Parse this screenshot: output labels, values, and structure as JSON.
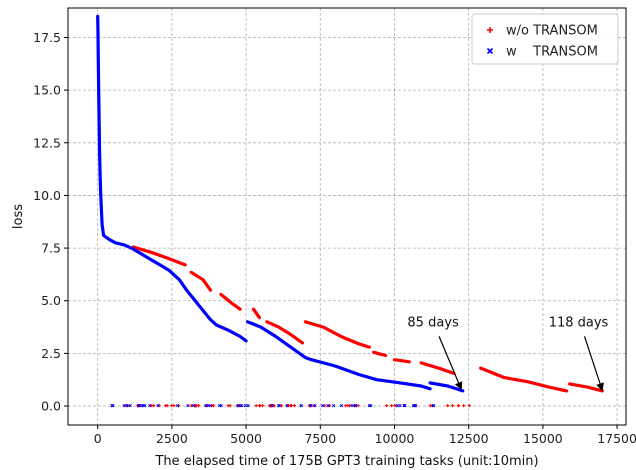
{
  "chart_data": {
    "type": "scatter",
    "xlabel": "The elapsed time of 175B GPT3 training tasks (unit:10min)",
    "ylabel": "loss",
    "xlim": [
      -1000,
      17800
    ],
    "ylim": [
      -0.9,
      18.9
    ],
    "xticks": [
      0,
      2500,
      5000,
      7500,
      10000,
      12500,
      15000,
      17500
    ],
    "yticks": [
      0.0,
      2.5,
      5.0,
      7.5,
      10.0,
      12.5,
      15.0,
      17.5
    ],
    "xtick_labels": [
      "0",
      "2500",
      "5000",
      "7500",
      "10000",
      "12500",
      "15000",
      "17500"
    ],
    "ytick_labels": [
      "0.0",
      "2.5",
      "5.0",
      "7.5",
      "10.0",
      "12.5",
      "15.0",
      "17.5"
    ],
    "grid": true,
    "legend_position": "top-right",
    "series": [
      {
        "name": "w/o TRANSOM",
        "marker": "plus",
        "color": "#ff0000",
        "segments": [
          [
            [
              1200,
              7.55
            ],
            [
              1800,
              7.3
            ],
            [
              2400,
              7.0
            ],
            [
              2950,
              6.7
            ]
          ],
          [
            [
              3150,
              6.35
            ],
            [
              3550,
              6.0
            ],
            [
              3800,
              5.5
            ]
          ],
          [
            [
              4150,
              5.3
            ],
            [
              4500,
              4.9
            ],
            [
              4800,
              4.6
            ]
          ],
          [
            [
              5250,
              4.6
            ],
            [
              5450,
              4.2
            ]
          ],
          [
            [
              5700,
              4.0
            ],
            [
              6100,
              3.75
            ],
            [
              6500,
              3.4
            ],
            [
              6900,
              3.0
            ]
          ],
          [
            [
              7000,
              4.0
            ],
            [
              7600,
              3.75
            ],
            [
              8200,
              3.3
            ],
            [
              8800,
              2.95
            ],
            [
              9150,
              2.8
            ]
          ],
          [
            [
              9300,
              2.55
            ],
            [
              9700,
              2.4
            ]
          ],
          [
            [
              10000,
              2.2
            ],
            [
              10500,
              2.1
            ]
          ],
          [
            [
              10900,
              2.05
            ],
            [
              11600,
              1.75
            ],
            [
              12000,
              1.55
            ]
          ],
          [
            [
              12900,
              1.8
            ],
            [
              13700,
              1.35
            ],
            [
              14500,
              1.15
            ],
            [
              15200,
              0.9
            ],
            [
              15800,
              0.72
            ]
          ],
          [
            [
              15900,
              1.05
            ],
            [
              16500,
              0.9
            ],
            [
              17000,
              0.72
            ]
          ]
        ],
        "near_zero_range": [
          400,
          12700
        ]
      },
      {
        "name": "w    TRANSOM",
        "marker": "x",
        "color": "#0000ff",
        "segments": [
          [
            [
              0,
              18.5
            ],
            [
              10,
              17.7
            ],
            [
              20,
              16.4
            ],
            [
              35,
              14.9
            ],
            [
              50,
              13.3
            ],
            [
              65,
              12.0
            ],
            [
              80,
              11.0
            ],
            [
              100,
              10.2
            ],
            [
              150,
              8.6
            ],
            [
              200,
              8.1
            ],
            [
              300,
              8.0
            ],
            [
              400,
              7.9
            ],
            [
              600,
              7.75
            ],
            [
              900,
              7.65
            ],
            [
              1200,
              7.45
            ],
            [
              1500,
              7.2
            ],
            [
              1800,
              6.95
            ],
            [
              2100,
              6.7
            ],
            [
              2400,
              6.45
            ],
            [
              2750,
              6.0
            ],
            [
              3000,
              5.5
            ],
            [
              3400,
              4.8
            ],
            [
              3800,
              4.1
            ],
            [
              4000,
              3.85
            ],
            [
              4400,
              3.6
            ],
            [
              4800,
              3.3
            ],
            [
              5000,
              3.1
            ]
          ],
          [
            [
              5050,
              4.0
            ],
            [
              5500,
              3.75
            ],
            [
              6000,
              3.3
            ],
            [
              6500,
              2.8
            ],
            [
              7000,
              2.3
            ],
            [
              7200,
              2.2
            ],
            [
              8000,
              1.9
            ],
            [
              8800,
              1.5
            ],
            [
              9400,
              1.25
            ],
            [
              10200,
              1.1
            ],
            [
              10900,
              0.95
            ],
            [
              11200,
              0.82
            ]
          ],
          [
            [
              11200,
              1.1
            ],
            [
              11800,
              0.95
            ],
            [
              12300,
              0.72
            ]
          ]
        ],
        "near_zero_range": [
          400,
          11600
        ]
      }
    ],
    "annotations": [
      {
        "text": "85 days",
        "x": 11300,
        "y": 3.5,
        "arrow_to": [
          12250,
          0.8
        ]
      },
      {
        "text": "118 days",
        "x": 16200,
        "y": 3.5,
        "arrow_to": [
          17000,
          0.75
        ]
      }
    ]
  }
}
